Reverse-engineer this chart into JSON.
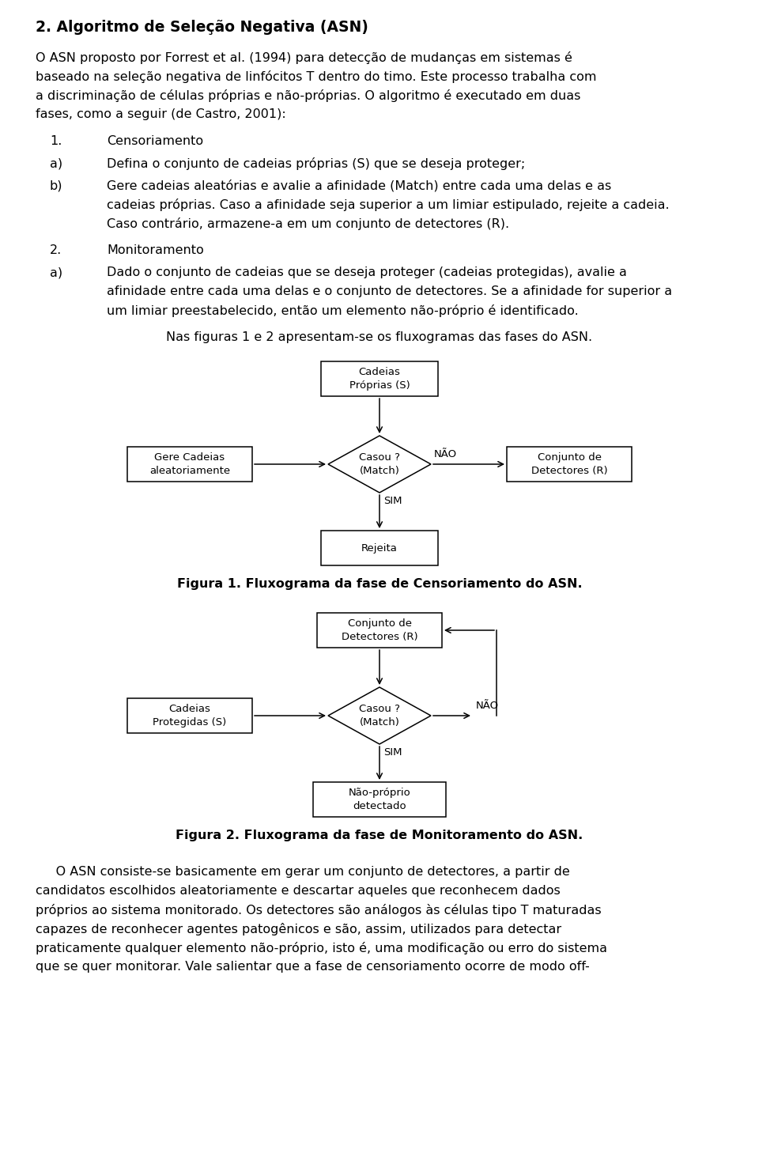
{
  "bg_color": "#ffffff",
  "title": "2. Algoritmo de Seleção Negativa (ASN)",
  "para1_lines": [
    "O ASN proposto por Forrest et al. (1994) para detecção de mudanças em sistemas é",
    "baseado na seleção negativa de linfócitos T dentro do timo. Este processo trabalha com",
    "a discriminação de células próprias e não-próprias. O algoritmo é executado em duas",
    "fases, como a seguir (de Castro, 2001):"
  ],
  "item1_label": "1.",
  "item1_text": "Censoriamento",
  "item1a_label": "a)",
  "item1a_text": "Defina o conjunto de cadeias próprias (S) que se deseja proteger;",
  "item1b_label": "b)",
  "item1b_lines": [
    "Gere cadeias aleatórias e avalie a afinidade (Match) entre cada uma delas e as",
    "cadeias próprias. Caso a afinidade seja superior a um limiar estipulado, rejeite a cadeia.",
    "Caso contrário, armazene-a em um conjunto de detectores (R)."
  ],
  "item2_label": "2.",
  "item2_text": "Monitoramento",
  "item2a_label": "a)",
  "item2a_lines": [
    "Dado o conjunto de cadeias que se deseja proteger (cadeias protegidas), avalie a",
    "afinidade entre cada uma delas e o conjunto de detectores. Se a afinidade for superior a",
    "um limiar preestabelecido, então um elemento não-próprio é identificado."
  ],
  "nas_figuras": "Nas figuras 1 e 2 apresentam-se os fluxogramas das fases do ASN.",
  "fig1_caption": "Figura 1. Fluxograma da fase de Censoriamento do ASN.",
  "fig2_caption": "Figura 2. Fluxograma da fase de Monitoramento do ASN.",
  "final_lines": [
    "     O ASN consiste-se basicamente em gerar um conjunto de detectores, a partir de",
    "candidatos escolhidos aleatoriamente e descartar aqueles que reconhecem dados",
    "próprios ao sistema monitorado. Os detectores são análogos às células tipo T maturadas",
    "capazes de reconhecer agentes patogênicos e são, assim, utilizados para detectar",
    "praticamente qualquer elemento não-próprio, isto é, uma modificação ou erro do sistema",
    "que se quer monitorar. Vale salientar que a fase de censoriamento ocorre de modo off-"
  ],
  "fig1_top_text": "Cadeias\nPróprias (S)",
  "fig1_diamond_text": "Casou ?\n(Match)",
  "fig1_left_text": "Gere Cadeias\naleatoriamente",
  "fig1_right_text": "Conjunto de\nDetectores (R)",
  "fig1_bottom_text": "Rejeita",
  "fig1_nao": "NÃO",
  "fig1_sim": "SIM",
  "fig2_top_text": "Conjunto de\nDetectores (R)",
  "fig2_diamond_text": "Casou ?\n(Match)",
  "fig2_left_text": "Cadeias\nProtegidas (S)",
  "fig2_bottom_text": "Não-próprio\ndetectado",
  "fig2_nao": "NÃO",
  "fig2_sim": "SIM"
}
